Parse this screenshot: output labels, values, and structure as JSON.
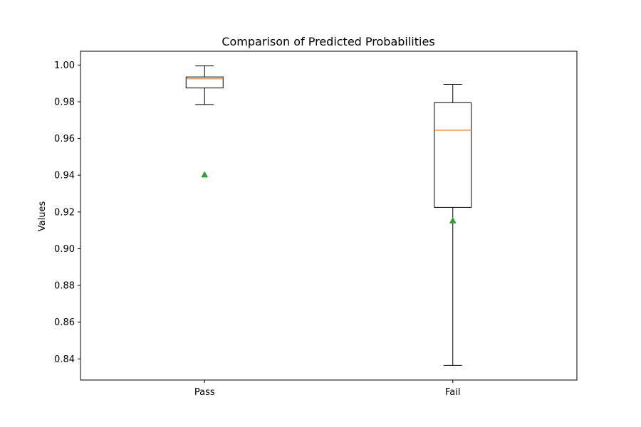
{
  "chart_data": {
    "type": "boxplot",
    "title": "Comparison of Predicted Probabilities",
    "xlabel": "",
    "ylabel": "Values",
    "ylim": [
      0.8285,
      1.0075
    ],
    "yticks": [
      0.84,
      0.86,
      0.88,
      0.9,
      0.92,
      0.94,
      0.96,
      0.98,
      1.0
    ],
    "ytick_labels": [
      "0.84",
      "0.86",
      "0.88",
      "0.90",
      "0.92",
      "0.94",
      "0.96",
      "0.98",
      "1.00"
    ],
    "categories": [
      "Pass",
      "Fail"
    ],
    "boxes": [
      {
        "category": "Pass",
        "whisker_low": 0.9785,
        "q1": 0.9875,
        "median": 0.9925,
        "q3": 0.9935,
        "whisker_high": 0.9995,
        "mean": 0.9403
      },
      {
        "category": "Fail",
        "whisker_low": 0.8365,
        "q1": 0.9225,
        "median": 0.9645,
        "q3": 0.9795,
        "whisker_high": 0.9895,
        "mean": 0.9153
      }
    ],
    "grid": false,
    "colors": {
      "box": "#000000",
      "median": "#ff7f0e",
      "mean": "#2ca02c"
    }
  }
}
